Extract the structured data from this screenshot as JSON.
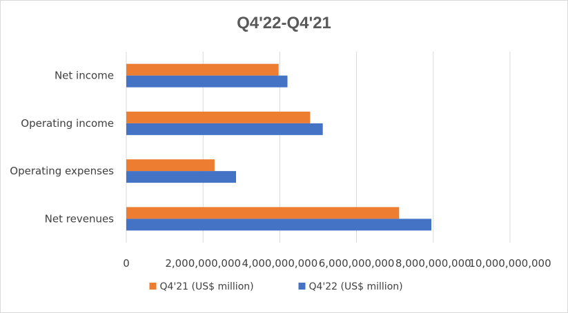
{
  "chart_data": {
    "type": "bar",
    "orientation": "horizontal",
    "title": "Q4'22-Q4'21",
    "categories": [
      "Net income",
      "Operating income",
      "Operating expenses",
      "Net revenues"
    ],
    "series": [
      {
        "name": "Q4'21 (US$ million)",
        "color": "#ed7d31",
        "values": [
          3970000000,
          4790000000,
          2300000000,
          7110000000
        ]
      },
      {
        "name": "Q4'22 (US$ million)",
        "color": "#4472c4",
        "values": [
          4200000000,
          5120000000,
          2860000000,
          7950000000
        ]
      }
    ],
    "xlim": [
      0,
      10000000000
    ],
    "xticks": [
      "0",
      "2,000,000,000",
      "4,000,000,000",
      "6,000,000,000",
      "8,000,000,000",
      "10,000,000,000"
    ],
    "grid": "vertical",
    "legend": "bottom",
    "legend_order": [
      0,
      1
    ]
  }
}
